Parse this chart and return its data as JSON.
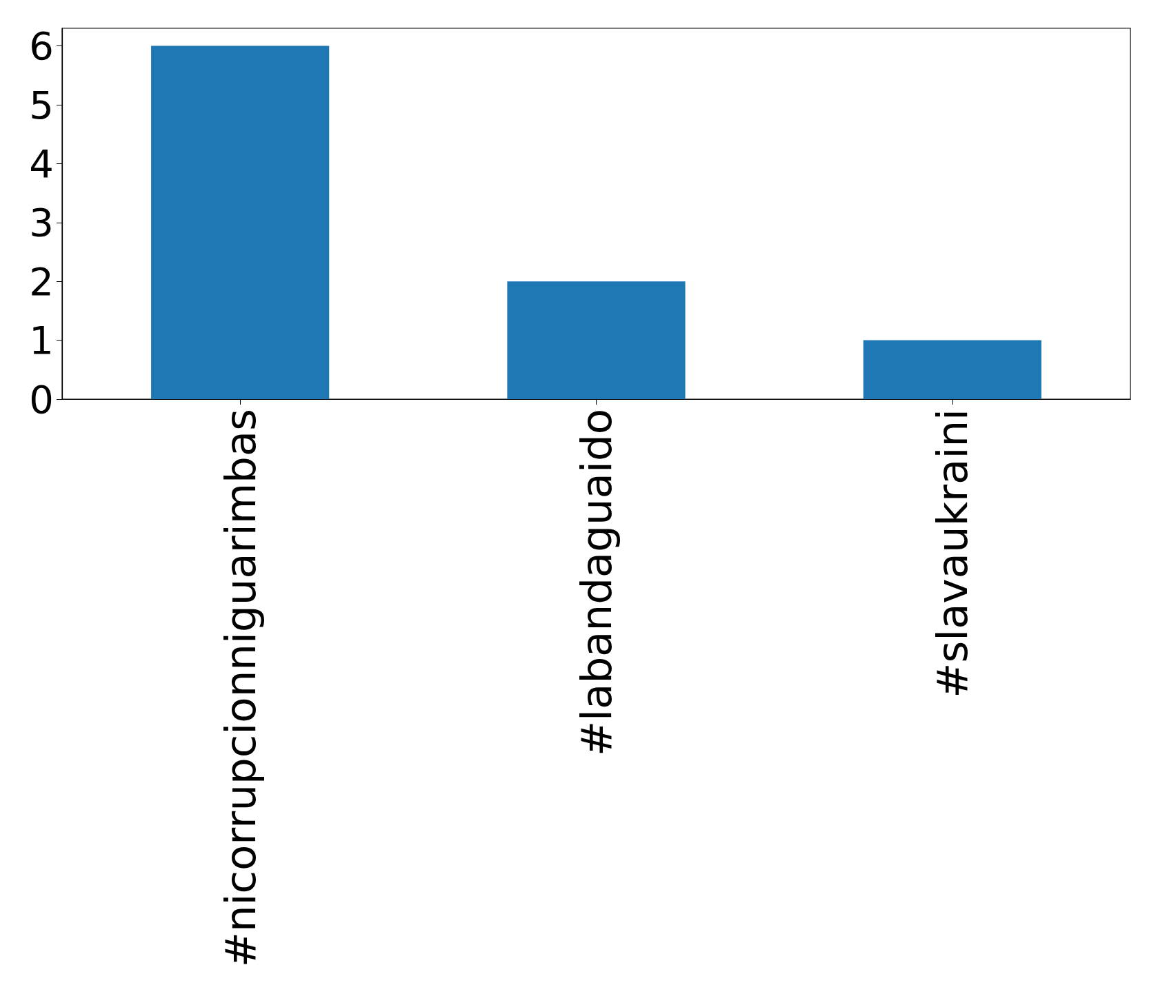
{
  "chart_data": {
    "type": "bar",
    "categories": [
      "#nicorrupcionniguarimbas",
      "#labandaguaido",
      "#slavaukraini"
    ],
    "values": [
      6,
      2,
      1
    ],
    "color": "#1f77b4",
    "ylim": [
      0,
      6.3
    ],
    "yticks": [
      0,
      1,
      2,
      3,
      4,
      5,
      6
    ],
    "grid": false
  }
}
